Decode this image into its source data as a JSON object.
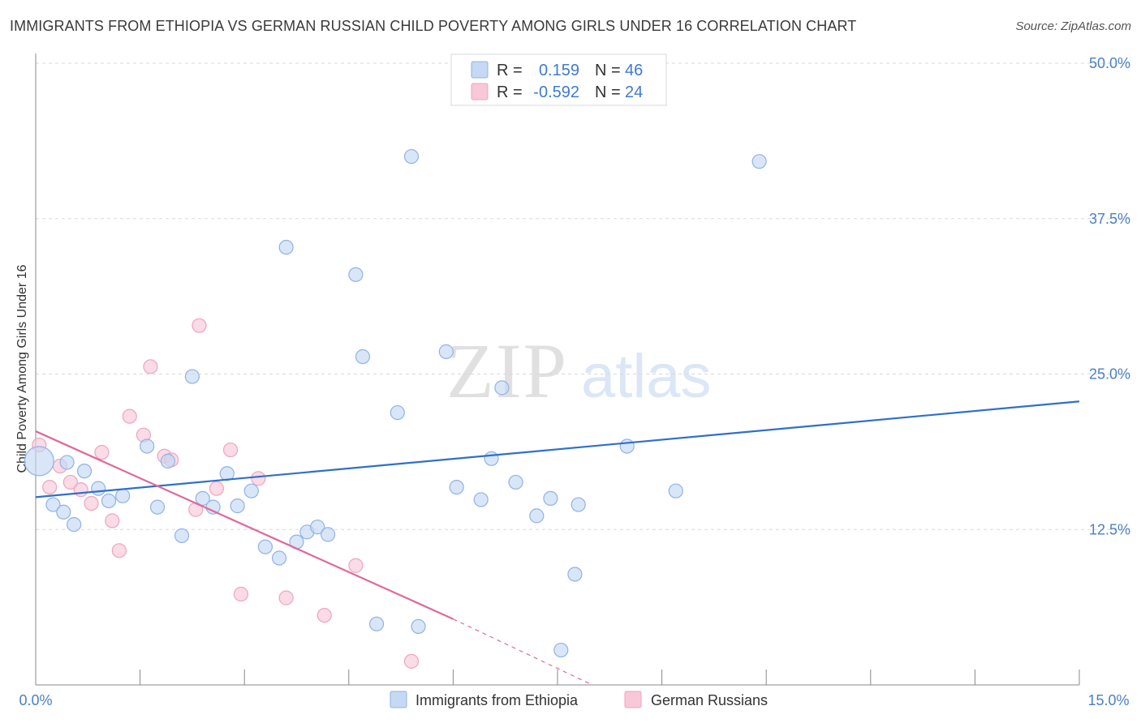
{
  "header": {
    "title": "IMMIGRANTS FROM ETHIOPIA VS GERMAN RUSSIAN CHILD POVERTY AMONG GIRLS UNDER 16 CORRELATION CHART",
    "source": "Source: ZipAtlas.com"
  },
  "watermark": {
    "part1": "ZIP",
    "part2": "atlas"
  },
  "colors": {
    "blue_fill": "#c5d9f5",
    "blue_stroke": "#8fb3e6",
    "blue_line": "#2f6fcc",
    "pink_fill": "#f8c8d8",
    "pink_stroke": "#eea5be",
    "pink_line": "#e0689a",
    "label": "#4a7fc8",
    "grid": "#d9d9d9"
  },
  "stats_box": {
    "r_label": "R =",
    "n_label": "N =",
    "rows": [
      {
        "series": "Immigrants from Ethiopia",
        "r": "0.159",
        "n": "46",
        "color": "blue"
      },
      {
        "series": "German Russians",
        "r": "-0.592",
        "n": "24",
        "color": "pink"
      }
    ]
  },
  "chart_data": {
    "type": "scatter",
    "title": "IMMIGRANTS FROM ETHIOPIA VS GERMAN RUSSIAN CHILD POVERTY AMONG GIRLS UNDER 16 CORRELATION CHART",
    "xlabel": "",
    "ylabel": "Child Poverty Among Girls Under 16",
    "xlim": [
      0,
      15
    ],
    "ylim": [
      0,
      50
    ],
    "x_tick_labels": [
      "0.0%",
      "15.0%"
    ],
    "y_ticks": [
      12.5,
      25.0,
      37.5,
      50.0
    ],
    "y_tick_labels": [
      "12.5%",
      "25.0%",
      "37.5%",
      "50.0%"
    ],
    "grid": true,
    "legend_position": "bottom",
    "series": [
      {
        "name": "Immigrants from Ethiopia",
        "color": "blue",
        "trend": {
          "x": [
            0,
            15
          ],
          "y": [
            15.1,
            22.8
          ]
        },
        "points": [
          {
            "x": 0.05,
            "y": 18.0,
            "big": true
          },
          {
            "x": 0.25,
            "y": 14.5
          },
          {
            "x": 0.4,
            "y": 13.9
          },
          {
            "x": 0.45,
            "y": 17.9
          },
          {
            "x": 0.55,
            "y": 12.9
          },
          {
            "x": 0.7,
            "y": 17.2
          },
          {
            "x": 0.9,
            "y": 15.8
          },
          {
            "x": 1.05,
            "y": 14.8
          },
          {
            "x": 1.25,
            "y": 15.2
          },
          {
            "x": 1.6,
            "y": 19.2
          },
          {
            "x": 1.75,
            "y": 14.3
          },
          {
            "x": 1.9,
            "y": 18.0
          },
          {
            "x": 2.1,
            "y": 12.0
          },
          {
            "x": 2.25,
            "y": 24.8
          },
          {
            "x": 2.4,
            "y": 15.0
          },
          {
            "x": 2.55,
            "y": 14.3
          },
          {
            "x": 2.75,
            "y": 17.0
          },
          {
            "x": 2.9,
            "y": 14.4
          },
          {
            "x": 3.1,
            "y": 15.6
          },
          {
            "x": 3.3,
            "y": 11.1
          },
          {
            "x": 3.5,
            "y": 10.2
          },
          {
            "x": 3.6,
            "y": 35.2
          },
          {
            "x": 3.75,
            "y": 11.5
          },
          {
            "x": 3.9,
            "y": 12.3
          },
          {
            "x": 4.05,
            "y": 12.7
          },
          {
            "x": 4.2,
            "y": 12.1
          },
          {
            "x": 4.6,
            "y": 33.0
          },
          {
            "x": 4.7,
            "y": 26.4
          },
          {
            "x": 4.9,
            "y": 4.9
          },
          {
            "x": 5.2,
            "y": 21.9
          },
          {
            "x": 5.4,
            "y": 42.5
          },
          {
            "x": 5.5,
            "y": 4.7
          },
          {
            "x": 5.9,
            "y": 26.8
          },
          {
            "x": 6.05,
            "y": 15.9
          },
          {
            "x": 6.4,
            "y": 14.9
          },
          {
            "x": 6.55,
            "y": 18.2
          },
          {
            "x": 6.7,
            "y": 23.9
          },
          {
            "x": 6.9,
            "y": 16.3
          },
          {
            "x": 7.2,
            "y": 13.6
          },
          {
            "x": 7.4,
            "y": 15.0
          },
          {
            "x": 7.55,
            "y": 2.8
          },
          {
            "x": 7.75,
            "y": 8.9
          },
          {
            "x": 7.8,
            "y": 14.5
          },
          {
            "x": 8.5,
            "y": 19.2
          },
          {
            "x": 9.2,
            "y": 15.6
          },
          {
            "x": 10.4,
            "y": 42.1
          }
        ]
      },
      {
        "name": "German Russians",
        "color": "pink",
        "trend": {
          "x": [
            0,
            6.0
          ],
          "y": [
            20.4,
            5.3
          ],
          "dash_to": {
            "x": 8.0,
            "y": 0.0
          }
        },
        "points": [
          {
            "x": 0.05,
            "y": 19.3
          },
          {
            "x": 0.2,
            "y": 15.9
          },
          {
            "x": 0.35,
            "y": 17.6
          },
          {
            "x": 0.5,
            "y": 16.3
          },
          {
            "x": 0.65,
            "y": 15.7
          },
          {
            "x": 0.8,
            "y": 14.6
          },
          {
            "x": 0.95,
            "y": 18.7
          },
          {
            "x": 1.1,
            "y": 13.2
          },
          {
            "x": 1.2,
            "y": 10.8
          },
          {
            "x": 1.35,
            "y": 21.6
          },
          {
            "x": 1.55,
            "y": 20.1
          },
          {
            "x": 1.65,
            "y": 25.6
          },
          {
            "x": 1.85,
            "y": 18.4
          },
          {
            "x": 1.95,
            "y": 18.1
          },
          {
            "x": 2.3,
            "y": 14.1
          },
          {
            "x": 2.35,
            "y": 28.9
          },
          {
            "x": 2.6,
            "y": 15.8
          },
          {
            "x": 2.8,
            "y": 18.9
          },
          {
            "x": 2.95,
            "y": 7.3
          },
          {
            "x": 3.2,
            "y": 16.6
          },
          {
            "x": 3.6,
            "y": 7.0
          },
          {
            "x": 4.15,
            "y": 5.6
          },
          {
            "x": 4.6,
            "y": 9.6
          },
          {
            "x": 5.4,
            "y": 1.9
          }
        ]
      }
    ]
  }
}
